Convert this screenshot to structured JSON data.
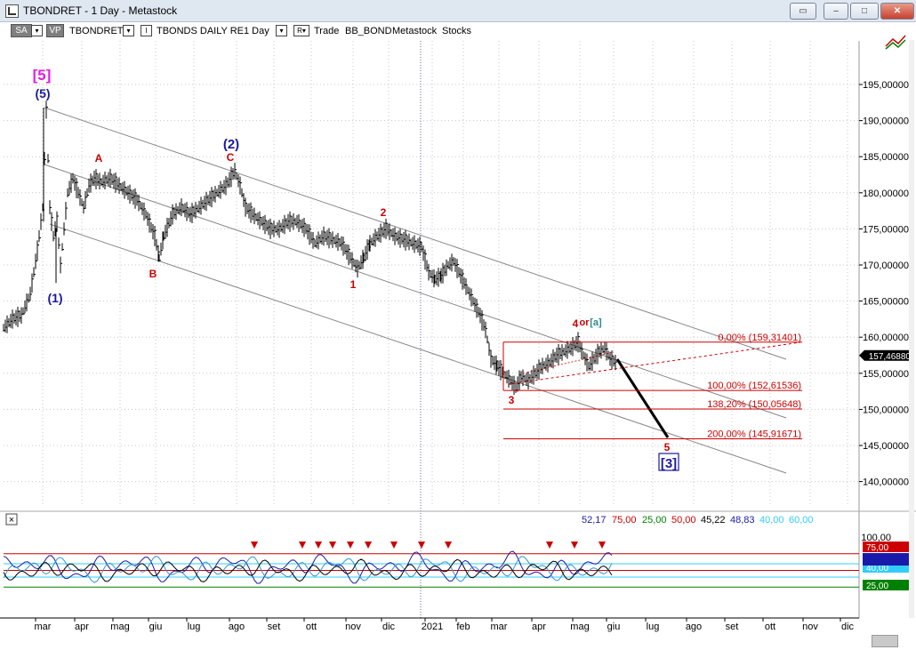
{
  "window": {
    "title": "TBONDRET - 1 Day - Metastock",
    "buttons": [
      "restore",
      "minimize",
      "maximize",
      "close"
    ]
  },
  "toolbar": {
    "sa_label": "SA",
    "vp_label": "VP",
    "symbol": "TBONDRET",
    "i_label": "I",
    "security_name": "TBONDS DAILY RE",
    "period": "1 Day",
    "r_label": "R",
    "trade_label": "Trade",
    "system": "BB_BOND",
    "source": "Metastock",
    "type": "Stocks"
  },
  "colors": {
    "price_bar": "#000000",
    "wave_red": "#cc0000",
    "wave_blue": "#1a1a9a",
    "wave_magenta": "#e020e0",
    "channel": "#888888",
    "fib_line": "#cc0000",
    "projection": "#000000",
    "indicator_blue": "#1a1aaa",
    "indicator_lightblue": "#3399cc"
  },
  "chart_data": {
    "type": "bar",
    "price_axis": {
      "ticks": [
        "195,00000",
        "190,00000",
        "185,00000",
        "180,00000",
        "175,00000",
        "170,00000",
        "165,00000",
        "160,00000",
        "155,00000",
        "150,00000",
        "145,00000",
        "140,00000"
      ],
      "values": [
        195,
        190,
        185,
        180,
        175,
        170,
        165,
        160,
        155,
        150,
        145,
        140
      ],
      "ylim": [
        135,
        200
      ]
    },
    "last_price": "157,46880",
    "x_axis": {
      "labels": [
        "mar",
        "apr",
        "mag",
        "giu",
        "lug",
        "ago",
        "set",
        "ott",
        "nov",
        "dic",
        "2021",
        "feb",
        "mar",
        "apr",
        "mag",
        "giu",
        "lug",
        "ago",
        "set",
        "ott",
        "nov",
        "dic"
      ]
    },
    "price_path": [
      [
        0,
        161.3
      ],
      [
        10,
        162.5
      ],
      [
        20,
        163.0
      ],
      [
        30,
        166
      ],
      [
        38,
        172
      ],
      [
        44,
        178
      ],
      [
        48,
        191.5
      ],
      [
        52,
        178
      ],
      [
        56,
        174
      ],
      [
        60,
        176
      ],
      [
        64,
        170
      ],
      [
        68,
        175
      ],
      [
        72,
        180
      ],
      [
        78,
        182
      ],
      [
        84,
        180
      ],
      [
        90,
        178
      ],
      [
        96,
        181
      ],
      [
        102,
        182
      ],
      [
        110,
        181.5
      ],
      [
        120,
        182
      ],
      [
        130,
        181
      ],
      [
        140,
        180
      ],
      [
        150,
        179
      ],
      [
        160,
        177
      ],
      [
        170,
        174
      ],
      [
        175,
        171
      ],
      [
        180,
        174
      ],
      [
        190,
        177
      ],
      [
        200,
        178
      ],
      [
        210,
        177
      ],
      [
        220,
        178
      ],
      [
        230,
        179
      ],
      [
        240,
        180
      ],
      [
        250,
        181
      ],
      [
        260,
        183
      ],
      [
        266,
        181
      ],
      [
        272,
        178
      ],
      [
        280,
        177
      ],
      [
        290,
        176
      ],
      [
        300,
        175
      ],
      [
        310,
        175
      ],
      [
        320,
        176
      ],
      [
        330,
        176
      ],
      [
        340,
        175
      ],
      [
        350,
        173
      ],
      [
        360,
        174
      ],
      [
        370,
        173.5
      ],
      [
        380,
        173
      ],
      [
        390,
        171
      ],
      [
        398,
        169.5
      ],
      [
        405,
        171
      ],
      [
        412,
        173
      ],
      [
        420,
        174
      ],
      [
        430,
        175
      ],
      [
        440,
        174
      ],
      [
        450,
        173.5
      ],
      [
        460,
        173
      ],
      [
        470,
        172.5
      ],
      [
        478,
        169
      ],
      [
        485,
        168
      ],
      [
        492,
        168.5
      ],
      [
        500,
        170
      ],
      [
        506,
        170.5
      ],
      [
        512,
        169
      ],
      [
        520,
        167
      ],
      [
        528,
        165
      ],
      [
        536,
        163
      ],
      [
        542,
        161
      ],
      [
        548,
        157
      ],
      [
        555,
        156
      ],
      [
        562,
        155
      ],
      [
        570,
        154
      ],
      [
        576,
        153
      ],
      [
        582,
        154.5
      ],
      [
        590,
        154
      ],
      [
        598,
        155
      ],
      [
        606,
        156
      ],
      [
        614,
        156.5
      ],
      [
        622,
        157.5
      ],
      [
        630,
        158
      ],
      [
        638,
        158.5
      ],
      [
        646,
        159.3
      ],
      [
        652,
        157.5
      ],
      [
        658,
        156
      ],
      [
        664,
        157
      ],
      [
        670,
        158
      ],
      [
        676,
        158.5
      ],
      [
        682,
        157
      ],
      [
        688,
        156.5
      ]
    ],
    "fib_levels": [
      {
        "label": "0,00% (159,31401)",
        "value": 159.31401
      },
      {
        "label": "100,00% (152,61536)",
        "value": 152.61536
      },
      {
        "label": "138,20% (150,05648)",
        "value": 150.05648
      },
      {
        "label": "200,00% (145,91671)",
        "value": 145.91671
      }
    ],
    "wave_labels": [
      {
        "text": "[5]",
        "color": "magenta"
      },
      {
        "text": "(5)",
        "color": "blue"
      },
      {
        "text": "(1)",
        "color": "blue"
      },
      {
        "text": "A",
        "color": "red"
      },
      {
        "text": "B",
        "color": "red"
      },
      {
        "text": "(2)",
        "color": "blue"
      },
      {
        "text": "C",
        "color": "red"
      },
      {
        "text": "2",
        "color": "red"
      },
      {
        "text": "1",
        "color": "red"
      },
      {
        "text": "4",
        "color": "red"
      },
      {
        "text": "or",
        "color": "red"
      },
      {
        "text": "[a]",
        "color": "teal"
      },
      {
        "text": "3",
        "color": "red"
      },
      {
        "text": "5",
        "color": "red"
      },
      {
        "text": "[3]",
        "color": "blue"
      }
    ]
  },
  "indicator": {
    "close_label": "×",
    "values": [
      {
        "text": "52,17",
        "color": "#1a1aaa"
      },
      {
        "text": "75,00",
        "color": "#cc0000"
      },
      {
        "text": "25,00",
        "color": "#008000"
      },
      {
        "text": "50,00",
        "color": "#cc0000"
      },
      {
        "text": "45,22",
        "color": "#000000"
      },
      {
        "text": "48,83",
        "color": "#1a1aaa"
      },
      {
        "text": "40,00",
        "color": "#33ccff"
      },
      {
        "text": "60,00",
        "color": "#33ccff"
      }
    ],
    "axis_top": "100,00",
    "badges": [
      {
        "text": "75,00",
        "color": "#cc0000"
      },
      {
        "text": "40,00",
        "color": "#33ccff"
      },
      {
        "text": "25,00",
        "color": "#008000"
      }
    ],
    "levels": [
      75,
      60,
      50,
      40,
      25
    ]
  }
}
